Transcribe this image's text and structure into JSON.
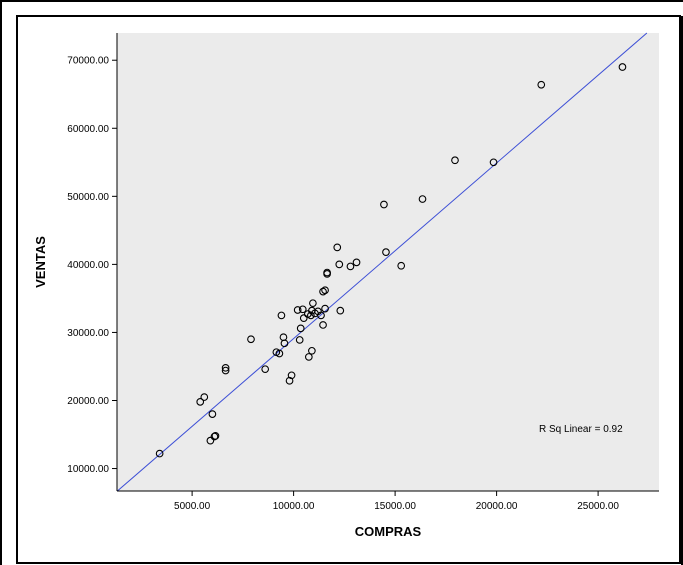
{
  "chart_data": {
    "type": "scatter",
    "xlabel": "COMPRAS",
    "ylabel": "VENTAS",
    "xlim": [
      1300,
      28000
    ],
    "ylim": [
      6700,
      74000
    ],
    "xticks": [
      5000,
      10000,
      15000,
      20000,
      25000
    ],
    "xtick_labels": [
      "5000.00",
      "10000.00",
      "15000.00",
      "20000.00",
      "25000.00"
    ],
    "yticks": [
      10000,
      20000,
      30000,
      40000,
      50000,
      60000,
      70000
    ],
    "ytick_labels": [
      "10000.00",
      "20000.00",
      "30000.00",
      "40000.00",
      "50000.00",
      "60000.00",
      "70000.00"
    ],
    "grid": false,
    "annotation": "R Sq Linear = 0.92",
    "fit_line": {
      "slope": 2.58,
      "intercept": 3300
    },
    "colors": {
      "plot_bg": "#ebebeb",
      "fit_line": "#3d4fd6",
      "markers": "#000000"
    },
    "points": [
      [
        3400,
        12200
      ],
      [
        5900,
        14100
      ],
      [
        6100,
        14700
      ],
      [
        6150,
        14800
      ],
      [
        6000,
        18000
      ],
      [
        5400,
        19800
      ],
      [
        5600,
        20500
      ],
      [
        6650,
        24400
      ],
      [
        6650,
        24800
      ],
      [
        7900,
        29000
      ],
      [
        8600,
        24600
      ],
      [
        9150,
        27100
      ],
      [
        9300,
        26900
      ],
      [
        9500,
        29300
      ],
      [
        9550,
        28400
      ],
      [
        9400,
        32500
      ],
      [
        9800,
        22900
      ],
      [
        9900,
        23700
      ],
      [
        10200,
        33300
      ],
      [
        10300,
        28900
      ],
      [
        10350,
        30600
      ],
      [
        10450,
        33400
      ],
      [
        10500,
        32100
      ],
      [
        10700,
        32700
      ],
      [
        10750,
        26400
      ],
      [
        10850,
        32500
      ],
      [
        10900,
        27300
      ],
      [
        10900,
        33200
      ],
      [
        10950,
        34300
      ],
      [
        11050,
        32800
      ],
      [
        11200,
        33100
      ],
      [
        11350,
        32500
      ],
      [
        11450,
        36000
      ],
      [
        11450,
        31100
      ],
      [
        11550,
        36200
      ],
      [
        11550,
        33500
      ],
      [
        11650,
        38600
      ],
      [
        11650,
        38800
      ],
      [
        12150,
        42500
      ],
      [
        12250,
        40000
      ],
      [
        12300,
        33200
      ],
      [
        12800,
        39700
      ],
      [
        13100,
        40300
      ],
      [
        14450,
        48800
      ],
      [
        14550,
        41800
      ],
      [
        15300,
        39800
      ],
      [
        16350,
        49600
      ],
      [
        17950,
        55300
      ],
      [
        19850,
        55000
      ],
      [
        22200,
        66400
      ],
      [
        26200,
        69000
      ]
    ]
  }
}
